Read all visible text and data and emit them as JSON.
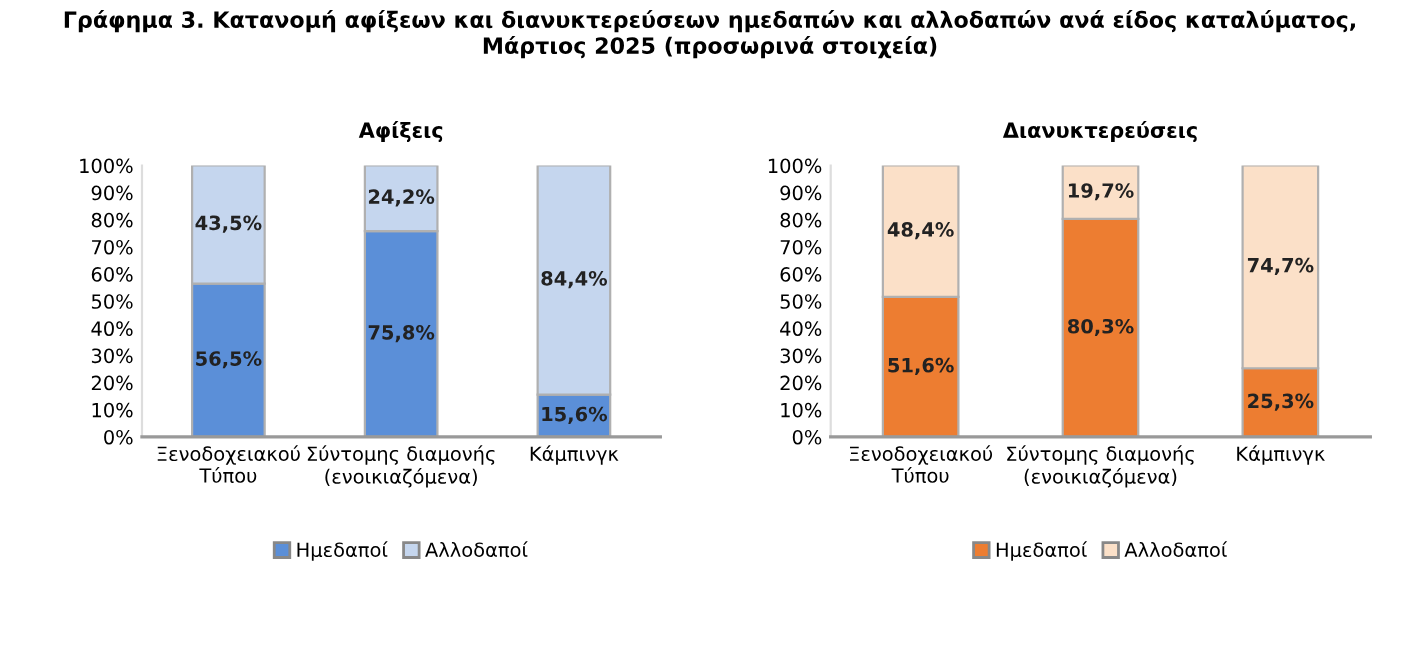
{
  "chart_data": [
    {
      "type": "bar",
      "stacked": true,
      "title": "Γράφημα 3. Κατανομή αφίξεων και διανυκτερεύσεων ημεδαπών και αλλοδαπών ανά είδος καταλύματος,\nΜάρτιος 2025 (προσωρινά στοιχεία)",
      "subtitle": "Αφίξεις",
      "categories": [
        "Ξενοδοχειακού\nΤύπου",
        "Σύντομης διαμονής\n(ενοικιαζόμενα)",
        "Κάμπινγκ"
      ],
      "series": [
        {
          "name": "Ημεδαποί",
          "color": "#5b8fd8",
          "values": [
            56.5,
            75.8,
            15.6
          ],
          "value_labels": [
            "56,5%",
            "75,8%",
            "15,6%"
          ]
        },
        {
          "name": "Αλλοδαποί",
          "color": "#c5d6ee",
          "values": [
            43.5,
            24.2,
            84.4
          ],
          "value_labels": [
            "43,5%",
            "24,2%",
            "84,4%"
          ]
        }
      ],
      "ylim": [
        0,
        100
      ],
      "yticks": [
        {
          "value": 0,
          "label": "0%"
        },
        {
          "value": 10,
          "label": "10%"
        },
        {
          "value": 20,
          "label": "20%"
        },
        {
          "value": 30,
          "label": "30%"
        },
        {
          "value": 40,
          "label": "40%"
        },
        {
          "value": 50,
          "label": "50%"
        },
        {
          "value": 60,
          "label": "60%"
        },
        {
          "value": 70,
          "label": "70%"
        },
        {
          "value": 80,
          "label": "80%"
        },
        {
          "value": 90,
          "label": "90%"
        },
        {
          "value": 100,
          "label": "100%"
        }
      ],
      "legend": "bottom"
    },
    {
      "type": "bar",
      "stacked": true,
      "subtitle": "Διανυκτερεύσεις",
      "categories": [
        "Ξενοδοχειακού\nΤύπου",
        "Σύντομης διαμονής\n(ενοικιαζόμενα)",
        "Κάμπινγκ"
      ],
      "series": [
        {
          "name": "Ημεδαποί",
          "color": "#ed7d31",
          "values": [
            51.6,
            80.3,
            25.3
          ],
          "value_labels": [
            "51,6%",
            "80,3%",
            "25,3%"
          ]
        },
        {
          "name": "Αλλοδαποί",
          "color": "#fbe0c8",
          "values": [
            48.4,
            19.7,
            74.7
          ],
          "value_labels": [
            "48,4%",
            "19,7%",
            "74,7%"
          ]
        }
      ],
      "ylim": [
        0,
        100
      ],
      "yticks": [
        {
          "value": 0,
          "label": "0%"
        },
        {
          "value": 10,
          "label": "10%"
        },
        {
          "value": 20,
          "label": "20%"
        },
        {
          "value": 30,
          "label": "30%"
        },
        {
          "value": 40,
          "label": "40%"
        },
        {
          "value": 50,
          "label": "50%"
        },
        {
          "value": 60,
          "label": "60%"
        },
        {
          "value": 70,
          "label": "70%"
        },
        {
          "value": 80,
          "label": "80%"
        },
        {
          "value": 90,
          "label": "90%"
        },
        {
          "value": 100,
          "label": "100%"
        }
      ],
      "legend": "bottom"
    }
  ]
}
